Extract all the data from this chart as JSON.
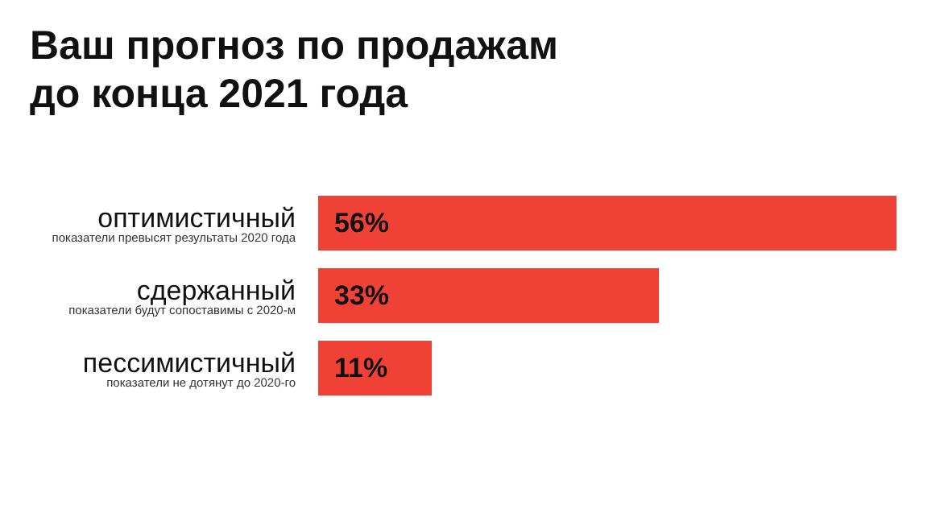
{
  "chart_data": {
    "type": "bar",
    "orientation": "horizontal",
    "title": "Ваш прогноз по продажам\nдо конца 2021 года",
    "categories": [
      "оптимистичный\nпоказатели превысят результаты 2020 года",
      "сдержанный\nпоказатели будут сопоставимы с 2020-м",
      "пессимистичный\nпоказатели не дотянут до 2020-го"
    ],
    "values": [
      56,
      33,
      11
    ],
    "color": "#f04136",
    "data_labels": true,
    "value_labels": [
      "56%",
      "33%",
      "11%"
    ],
    "tick_labels": false,
    "grid": false
  }
}
